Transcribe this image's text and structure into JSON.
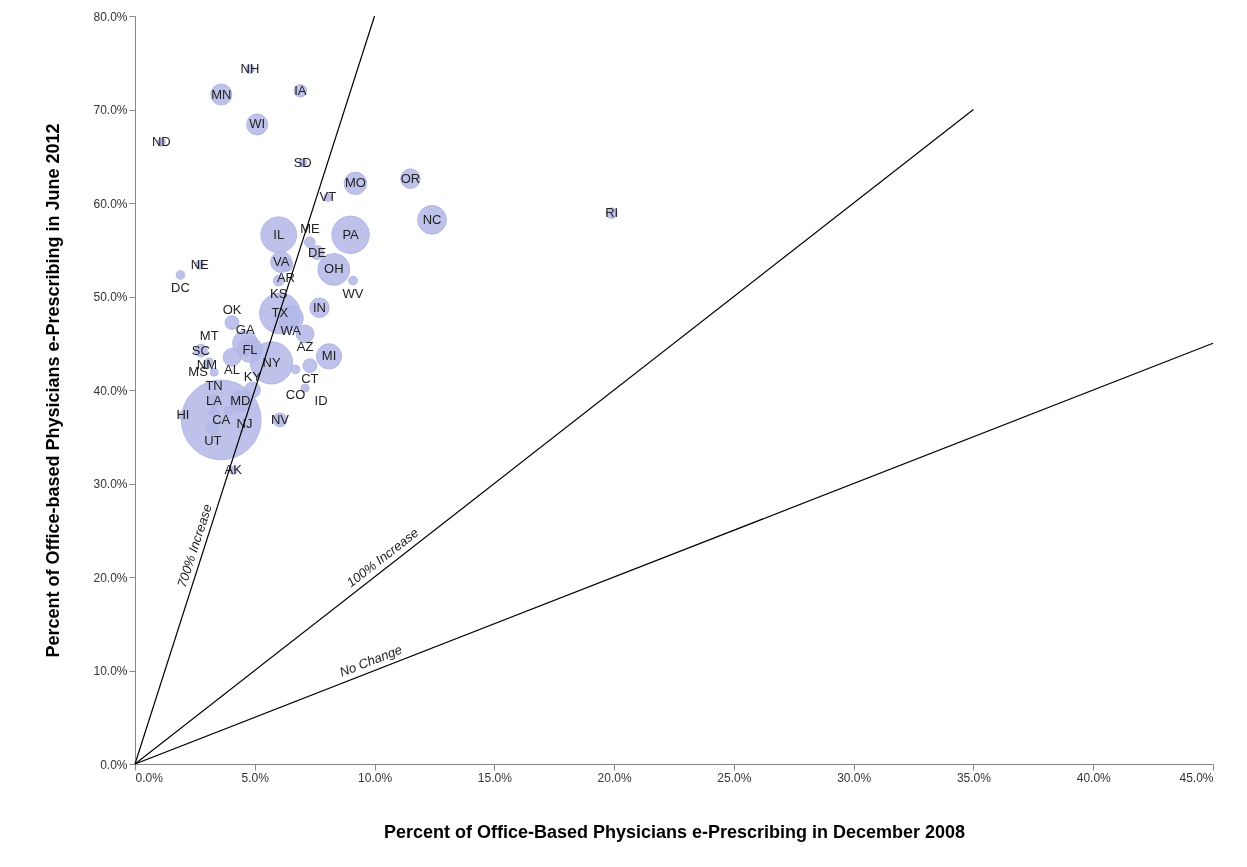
{
  "chart_data": {
    "type": "bubble",
    "xlabel": "Percent of Office-Based Physicians e-Prescribing in December 2008",
    "ylabel": "Percent of Office-based Physicians e-Prescribing in June 2012",
    "xlim": [
      0,
      45
    ],
    "ylim": [
      0,
      80
    ],
    "xticks": [
      {
        "value": 0,
        "label": "0.0%"
      },
      {
        "value": 5,
        "label": "5.0%"
      },
      {
        "value": 10,
        "label": "10.0%"
      },
      {
        "value": 15,
        "label": "15.0%"
      },
      {
        "value": 20,
        "label": "20.0%"
      },
      {
        "value": 25,
        "label": "25.0%"
      },
      {
        "value": 30,
        "label": "30.0%"
      },
      {
        "value": 35,
        "label": "35.0%"
      },
      {
        "value": 40,
        "label": "40.0%"
      },
      {
        "value": 45,
        "label": "45.0%"
      }
    ],
    "yticks": [
      {
        "value": 0,
        "label": "0.0%"
      },
      {
        "value": 10,
        "label": "10.0%"
      },
      {
        "value": 20,
        "label": "20.0%"
      },
      {
        "value": 30,
        "label": "30.0%"
      },
      {
        "value": 40,
        "label": "40.0%"
      },
      {
        "value": 50,
        "label": "50.0%"
      },
      {
        "value": 60,
        "label": "60.0%"
      },
      {
        "value": 70,
        "label": "70.0%"
      },
      {
        "value": 80,
        "label": "80.0%"
      }
    ],
    "grid": false,
    "series": [
      {
        "color": "#b3b7e6",
        "x": [
          3.6,
          5.7,
          6.05,
          9.0,
          6.0,
          8.3,
          12.4,
          4.8,
          4.6,
          8.1,
          6.5,
          9.2,
          3.6,
          5.1,
          11.5,
          4.4,
          7.7,
          6.1,
          7.1,
          4.05,
          4.9,
          19.9,
          4.05,
          7.3,
          6.3,
          7.6,
          3.3,
          6.05,
          2.75,
          7.3,
          6.0,
          6.9,
          3.25,
          9.1,
          4.8,
          2.7,
          1.9,
          6.7,
          8.05,
          7.0,
          7.1,
          4.1,
          1.1,
          2.0,
          3.3,
          3.9,
          3.3,
          3.0,
          3.1
        ],
        "values": [
          36.8,
          42.9,
          48.2,
          56.6,
          56.6,
          52.9,
          58.2,
          44.3,
          45.0,
          43.6,
          47.7,
          62.1,
          71.6,
          68.4,
          62.6,
          38.8,
          48.8,
          53.7,
          46.0,
          43.5,
          40.0,
          58.9,
          47.2,
          42.6,
          53.4,
          54.7,
          38.8,
          36.8,
          44.2,
          55.8,
          51.7,
          72.0,
          35.9,
          51.7,
          74.3,
          53.4,
          52.3,
          42.2,
          60.6,
          64.3,
          40.2,
          31.4,
          66.5,
          37.3,
          37.6,
          37.8,
          41.9,
          42.7,
          43.0
        ],
        "sizes": [
          1,
          0.28,
          0.26,
          0.22,
          0.2,
          0.16,
          0.13,
          0.1,
          0.1,
          0.1,
          0.1,
          0.08,
          0.07,
          0.07,
          0.06,
          0.07,
          0.06,
          0.07,
          0.05,
          0.05,
          0.04,
          0.018,
          0.03,
          0.03,
          0.03,
          0.03,
          0.025,
          0.03,
          0.025,
          0.018,
          0.018,
          0.025,
          0.025,
          0.012,
          0.012,
          0.012,
          0.012,
          0.012,
          0.01,
          0.01,
          0.01,
          0.01,
          0.01,
          0.01,
          0.012,
          0.012,
          0.01,
          0.01,
          0.01
        ],
        "value_labels": [
          "CA",
          "NY",
          "TX",
          "PA",
          "IL",
          "OH",
          "NC",
          "FL",
          "GA",
          "MI",
          "WA",
          "MO",
          "MN",
          "WI",
          "OR",
          "MD",
          "IN",
          "VA",
          "AZ",
          "AL",
          "KY",
          "RI",
          "OK",
          "CT",
          "AR",
          "DE",
          "LA",
          "NV",
          "SC",
          "ME",
          "KS",
          "IA",
          "UT",
          "WV",
          "NH",
          "NE",
          "DC",
          "CO",
          "VT",
          "SD",
          "ID",
          "AK",
          "ND",
          "HI",
          "TN",
          "NJ",
          "MS",
          "NM",
          "MT"
        ]
      },
      {
        "type": "line",
        "color": "#000000",
        "x": [
          0,
          10
        ],
        "values": [
          0,
          80
        ]
      },
      {
        "type": "line",
        "color": "#000000",
        "x": [
          0,
          35
        ],
        "values": [
          0,
          70
        ]
      },
      {
        "type": "line",
        "color": "#000000",
        "x": [
          0,
          45
        ],
        "values": [
          0,
          45
        ]
      }
    ],
    "annotations": [
      {
        "text": "700% Increase",
        "x": 2.9,
        "y": 23
      },
      {
        "text": "100% Increase",
        "x": 10.6,
        "y": 21.2
      },
      {
        "text": "No Change",
        "x": 10,
        "y": 10
      }
    ],
    "line_style": "solid"
  }
}
